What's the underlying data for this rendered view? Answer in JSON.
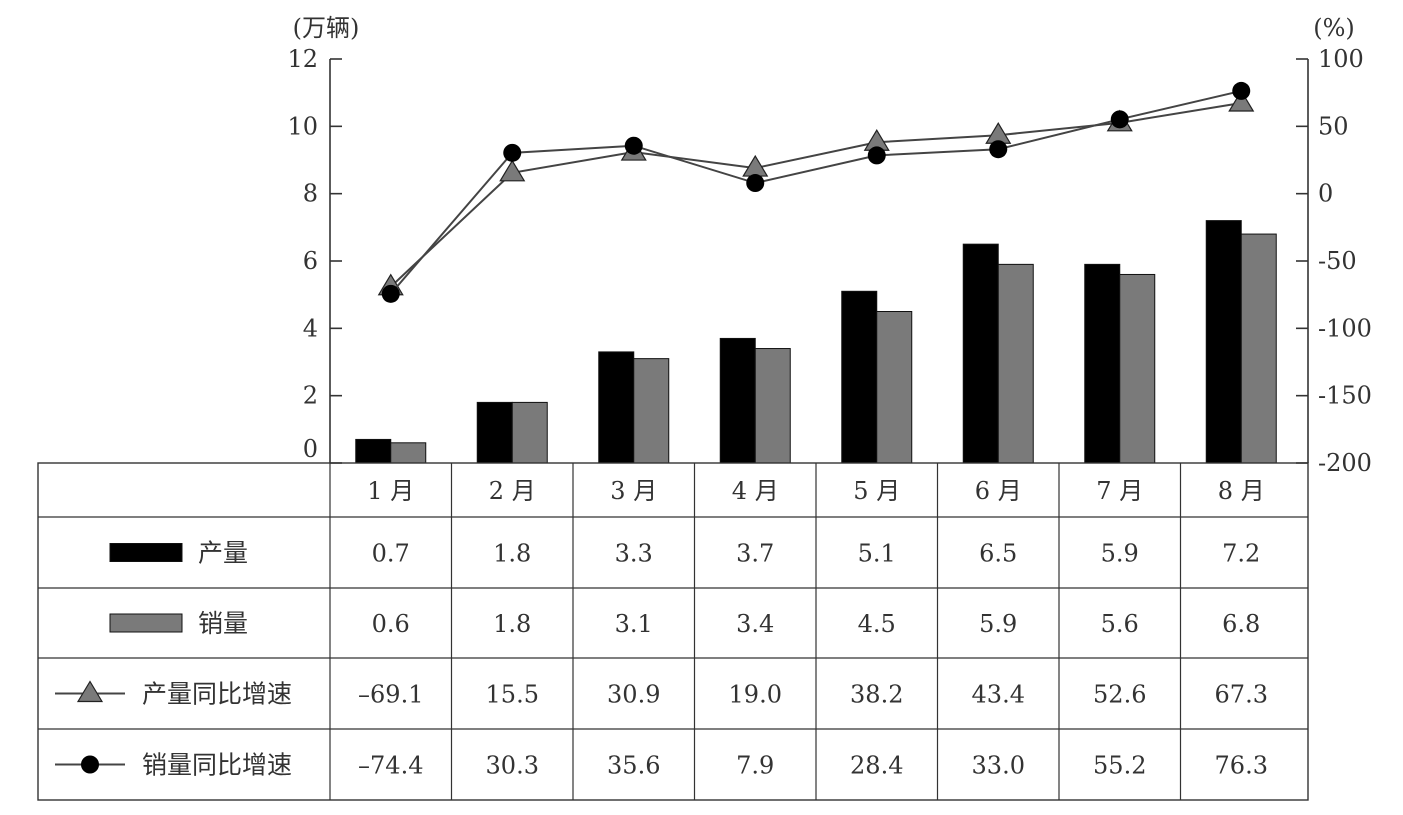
{
  "chart_data": {
    "type": "bar",
    "categories": [
      "1 月",
      "2 月",
      "3 月",
      "4 月",
      "5 月",
      "6 月",
      "7 月",
      "8 月"
    ],
    "y_left": {
      "unit": "(万辆)",
      "range": [
        0,
        12
      ],
      "ticks": [
        "0",
        "2",
        "4",
        "6",
        "8",
        "10",
        "12"
      ]
    },
    "y_right": {
      "unit": "(%)",
      "range": [
        -200,
        100
      ],
      "ticks": [
        "-200",
        "-150",
        "-100",
        "-50",
        "0",
        "50",
        "100"
      ]
    },
    "series": [
      {
        "name": "产量",
        "kind": "bar",
        "axis": "left",
        "color": "#000000",
        "values": [
          0.7,
          1.8,
          3.3,
          3.7,
          5.1,
          6.5,
          5.9,
          7.2
        ],
        "labels": [
          "0.7",
          "1.8",
          "3.3",
          "3.7",
          "5.1",
          "6.5",
          "5.9",
          "7.2"
        ]
      },
      {
        "name": "销量",
        "kind": "bar",
        "axis": "left",
        "color": "#7a7a7a",
        "values": [
          0.6,
          1.8,
          3.1,
          3.4,
          4.5,
          5.9,
          5.6,
          6.8
        ],
        "labels": [
          "0.6",
          "1.8",
          "3.1",
          "3.4",
          "4.5",
          "5.9",
          "5.6",
          "6.8"
        ]
      },
      {
        "name": "产量同比增速",
        "kind": "line",
        "marker": "triangle",
        "axis": "right",
        "color": "#7a7a7a",
        "values": [
          -69.1,
          15.5,
          30.9,
          19.0,
          38.2,
          43.4,
          52.6,
          67.3
        ],
        "labels": [
          "–69.1",
          "15.5",
          "30.9",
          "19.0",
          "38.2",
          "43.4",
          "52.6",
          "67.3"
        ]
      },
      {
        "name": "销量同比增速",
        "kind": "line",
        "marker": "circle",
        "axis": "right",
        "color": "#000000",
        "values": [
          -74.4,
          30.3,
          35.6,
          7.9,
          28.4,
          33.0,
          55.2,
          76.3
        ],
        "labels": [
          "–74.4",
          "30.3",
          "35.6",
          "7.9",
          "28.4",
          "33.0",
          "55.2",
          "76.3"
        ]
      }
    ],
    "legend": "data table below chart",
    "grid": false
  }
}
